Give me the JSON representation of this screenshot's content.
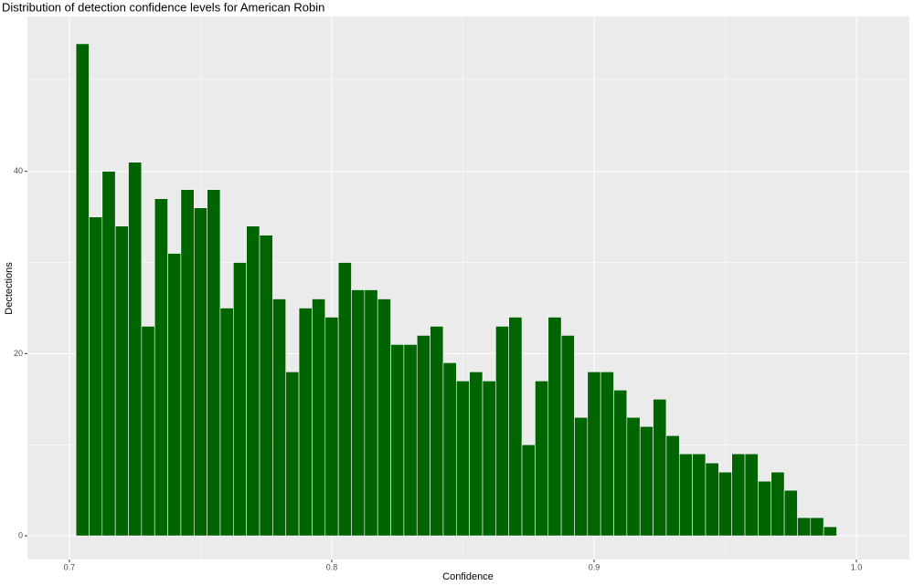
{
  "chart_data": {
    "type": "histogram",
    "title": "Distribution of detection confidence levels for American Robin",
    "x_label": "Confidence",
    "y_label": "Dectections",
    "color": "#006400",
    "edge_color": "#ffffff",
    "background": "#ebebeb",
    "grid": true,
    "minor_grid": true,
    "bins": [
      0.7025,
      0.7075,
      0.7125,
      0.7175,
      0.7225,
      0.7275,
      0.7325,
      0.7375,
      0.7425,
      0.7475,
      0.7525,
      0.7575,
      0.7625,
      0.7675,
      0.7725,
      0.7775,
      0.7825,
      0.7875,
      0.7925,
      0.7975,
      0.8025,
      0.8075,
      0.8125,
      0.8175,
      0.8225,
      0.8275,
      0.8325,
      0.8375,
      0.8425,
      0.8475,
      0.8525,
      0.8575,
      0.8625,
      0.8675,
      0.8725,
      0.8775,
      0.8825,
      0.8875,
      0.8925,
      0.8975,
      0.9025,
      0.9075,
      0.9125,
      0.9175,
      0.9225,
      0.9275,
      0.9325,
      0.9375,
      0.9425,
      0.9475,
      0.9525,
      0.9575,
      0.9625,
      0.9675,
      0.9725,
      0.9775,
      0.9825,
      0.9875,
      0.9925
    ],
    "values": [
      54,
      35,
      40,
      34,
      41,
      23,
      37,
      31,
      38,
      36,
      38,
      25,
      30,
      34,
      33,
      26,
      18,
      25,
      26,
      24,
      30,
      27,
      27,
      26,
      21,
      21,
      22,
      23,
      19,
      17,
      18,
      17,
      23,
      24,
      10,
      17,
      24,
      22,
      13,
      18,
      18,
      16,
      13,
      12,
      15,
      11,
      9,
      9,
      8,
      7,
      9,
      9,
      6,
      7,
      5,
      2,
      2,
      1
    ],
    "xlim": [
      0.684,
      1.0202
    ],
    "xticks": [
      0.7,
      0.8,
      0.9,
      {
        "value": 1,
        "label": "1.0"
      }
    ],
    "ylim": [
      -2.6,
      57
    ],
    "yticks": [
      0,
      20,
      40
    ]
  }
}
